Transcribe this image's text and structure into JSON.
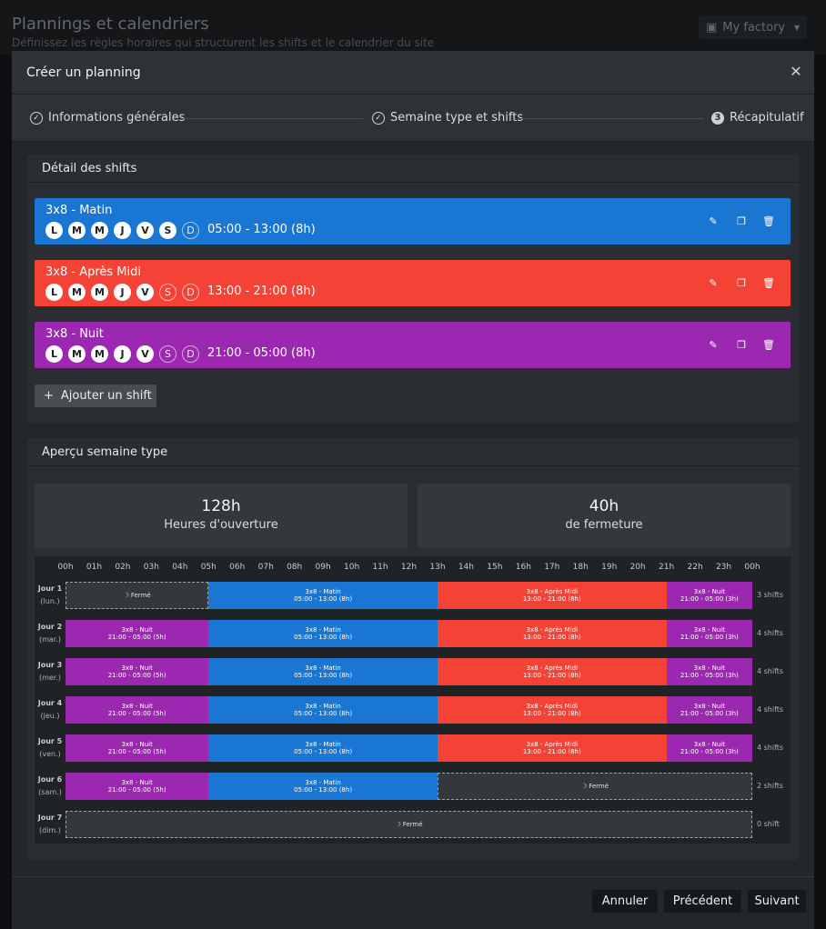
{
  "page": {
    "title": "Plannings et calendriers",
    "subtitle": "Définissez les règles horaires qui structurent les shifts et le calendrier du site",
    "factory_label": "My factory"
  },
  "modal": {
    "title": "Créer un planning",
    "steps": [
      {
        "label": "Informations générales",
        "state": "done"
      },
      {
        "label": "Semaine type et shifts",
        "state": "done"
      },
      {
        "label": "Récapitulatif",
        "state": "current",
        "number": "3"
      }
    ]
  },
  "shifts_panel": {
    "title": "Détail des shifts",
    "add_label": "Ajouter un shift",
    "shifts": [
      {
        "name": "3x8 - Matin",
        "time": "05:00 - 13:00 (8h)",
        "color": "#1976d2",
        "days": [
          {
            "l": "L",
            "on": true
          },
          {
            "l": "M",
            "on": true
          },
          {
            "l": "M",
            "on": true
          },
          {
            "l": "J",
            "on": true
          },
          {
            "l": "V",
            "on": true
          },
          {
            "l": "S",
            "on": true
          },
          {
            "l": "D",
            "on": false
          }
        ]
      },
      {
        "name": "3x8 - Après Midi",
        "time": "13:00 - 21:00 (8h)",
        "color": "#f44336",
        "days": [
          {
            "l": "L",
            "on": true
          },
          {
            "l": "M",
            "on": true
          },
          {
            "l": "M",
            "on": true
          },
          {
            "l": "J",
            "on": true
          },
          {
            "l": "V",
            "on": true
          },
          {
            "l": "S",
            "on": false
          },
          {
            "l": "D",
            "on": false
          }
        ]
      },
      {
        "name": "3x8 - Nuit",
        "time": "21:00 - 05:00 (8h)",
        "color": "#9c27b0",
        "days": [
          {
            "l": "L",
            "on": true
          },
          {
            "l": "M",
            "on": true
          },
          {
            "l": "M",
            "on": true
          },
          {
            "l": "J",
            "on": true
          },
          {
            "l": "V",
            "on": true
          },
          {
            "l": "S",
            "on": false
          },
          {
            "l": "D",
            "on": false
          }
        ]
      }
    ],
    "actions": [
      "edit-icon",
      "copy-icon",
      "delete-icon"
    ]
  },
  "week_panel": {
    "title": "Aperçu semaine type",
    "open_hours": {
      "value": "128h",
      "label": "Heures d'ouverture"
    },
    "closed_hours": {
      "value": "40h",
      "label": "de fermeture"
    },
    "hours": [
      "00h",
      "01h",
      "02h",
      "03h",
      "04h",
      "05h",
      "06h",
      "07h",
      "08h",
      "09h",
      "10h",
      "11h",
      "12h",
      "13h",
      "14h",
      "15h",
      "16h",
      "17h",
      "18h",
      "19h",
      "20h",
      "21h",
      "22h",
      "23h",
      "00h"
    ],
    "closed_label": "Fermé",
    "days": [
      {
        "day": "Jour 1",
        "name": "(lun.)",
        "count": "3 shifts",
        "segments": [
          {
            "type": "closed",
            "start": 0,
            "end": 5
          },
          {
            "type": "matin",
            "start": 5,
            "end": 13
          },
          {
            "type": "aprem",
            "start": 13,
            "end": 21
          },
          {
            "type": "nuit",
            "start": 21,
            "end": 24
          }
        ]
      },
      {
        "day": "Jour 2",
        "name": "(mar.)",
        "count": "4 shifts",
        "segments": [
          {
            "type": "nuit",
            "start": 0,
            "end": 5
          },
          {
            "type": "matin",
            "start": 5,
            "end": 13
          },
          {
            "type": "aprem",
            "start": 13,
            "end": 21
          },
          {
            "type": "nuit",
            "start": 21,
            "end": 24
          }
        ]
      },
      {
        "day": "Jour 3",
        "name": "(mer.)",
        "count": "4 shifts",
        "segments": [
          {
            "type": "nuit",
            "start": 0,
            "end": 5
          },
          {
            "type": "matin",
            "start": 5,
            "end": 13
          },
          {
            "type": "aprem",
            "start": 13,
            "end": 21
          },
          {
            "type": "nuit",
            "start": 21,
            "end": 24
          }
        ]
      },
      {
        "day": "Jour 4",
        "name": "(jeu.)",
        "count": "4 shifts",
        "segments": [
          {
            "type": "nuit",
            "start": 0,
            "end": 5
          },
          {
            "type": "matin",
            "start": 5,
            "end": 13
          },
          {
            "type": "aprem",
            "start": 13,
            "end": 21
          },
          {
            "type": "nuit",
            "start": 21,
            "end": 24
          }
        ]
      },
      {
        "day": "Jour 5",
        "name": "(ven.)",
        "count": "4 shifts",
        "segments": [
          {
            "type": "nuit",
            "start": 0,
            "end": 5
          },
          {
            "type": "matin",
            "start": 5,
            "end": 13
          },
          {
            "type": "aprem",
            "start": 13,
            "end": 21
          },
          {
            "type": "nuit",
            "start": 21,
            "end": 24
          }
        ]
      },
      {
        "day": "Jour 6",
        "name": "(sam.)",
        "count": "2 shifts",
        "segments": [
          {
            "type": "nuit",
            "start": 0,
            "end": 5
          },
          {
            "type": "matin",
            "start": 5,
            "end": 13
          },
          {
            "type": "closed",
            "start": 13,
            "end": 24
          }
        ]
      },
      {
        "day": "Jour 7",
        "name": "(dim.)",
        "count": "0 shift",
        "segments": [
          {
            "type": "closed",
            "start": 0,
            "end": 24
          }
        ]
      }
    ],
    "segment_types": {
      "matin": {
        "name": "3x8 - Matin",
        "time": "05:00 - 13:00 (8h)",
        "color": "#1976d2"
      },
      "aprem": {
        "name": "3x8 - Après Midi",
        "time": "13:00 - 21:00 (8h)",
        "color": "#f44336"
      },
      "nuit_early": {
        "name": "3x8 - Nuit",
        "time": "21:00 - 05:00 (5h)",
        "color": "#9c27b0"
      },
      "nuit_late": {
        "name": "3x8 - Nuit",
        "time": "21:00 - 05:00 (3h)",
        "color": "#9c27b0"
      }
    }
  },
  "footer": {
    "cancel": "Annuler",
    "previous": "Précédent",
    "next": "Suivant"
  }
}
